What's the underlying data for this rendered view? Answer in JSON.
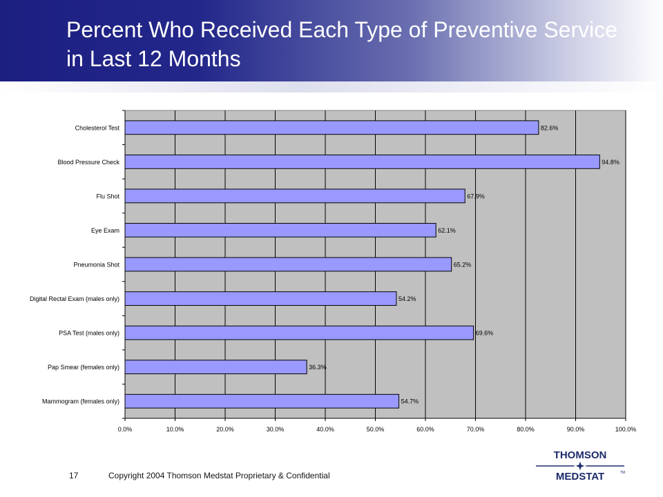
{
  "slide": {
    "title": "Percent Who Received Each Type of Preventive Service in Last 12 Months",
    "page_number": "17",
    "copyright": "Copyright 2004 Thomson Medstat  Proprietary & Confidential",
    "logo_top": "THOMSON",
    "logo_bottom": "MEDSTAT",
    "logo_tm": "TM"
  },
  "colors": {
    "title_band": "#1c1f80",
    "plot_bg": "#c0c0c0",
    "bar_fill": "#9999ff",
    "bar_stroke": "#000000"
  },
  "chart_data": {
    "type": "bar",
    "orientation": "horizontal",
    "title": "",
    "xlabel": "",
    "ylabel": "",
    "categories": [
      "Cholesterol Test",
      "Blood Pressure Check",
      "Flu Shot",
      "Eye Exam",
      "Pneumonia Shot",
      "Digital Rectal Exam (males only)",
      "PSA Test (males only)",
      "Pap Smear (females only)",
      "Mammogram (females only)"
    ],
    "values": [
      82.6,
      94.8,
      67.9,
      62.1,
      65.2,
      54.2,
      69.6,
      36.3,
      54.7
    ],
    "data_labels": [
      "82.6%",
      "94.8%",
      "67.9%",
      "62.1%",
      "65.2%",
      "54.2%",
      "69.6%",
      "36.3%",
      "54.7%"
    ],
    "xlim": [
      0,
      100
    ],
    "x_ticks": [
      0,
      10,
      20,
      30,
      40,
      50,
      60,
      70,
      80,
      90,
      100
    ],
    "x_tick_labels": [
      "0.0%",
      "10.0%",
      "20.0%",
      "30.0%",
      "40.0%",
      "50.0%",
      "60.0%",
      "70.0%",
      "80.0%",
      "90.0%",
      "100.0%"
    ],
    "grid": "vertical",
    "legend": "none"
  }
}
